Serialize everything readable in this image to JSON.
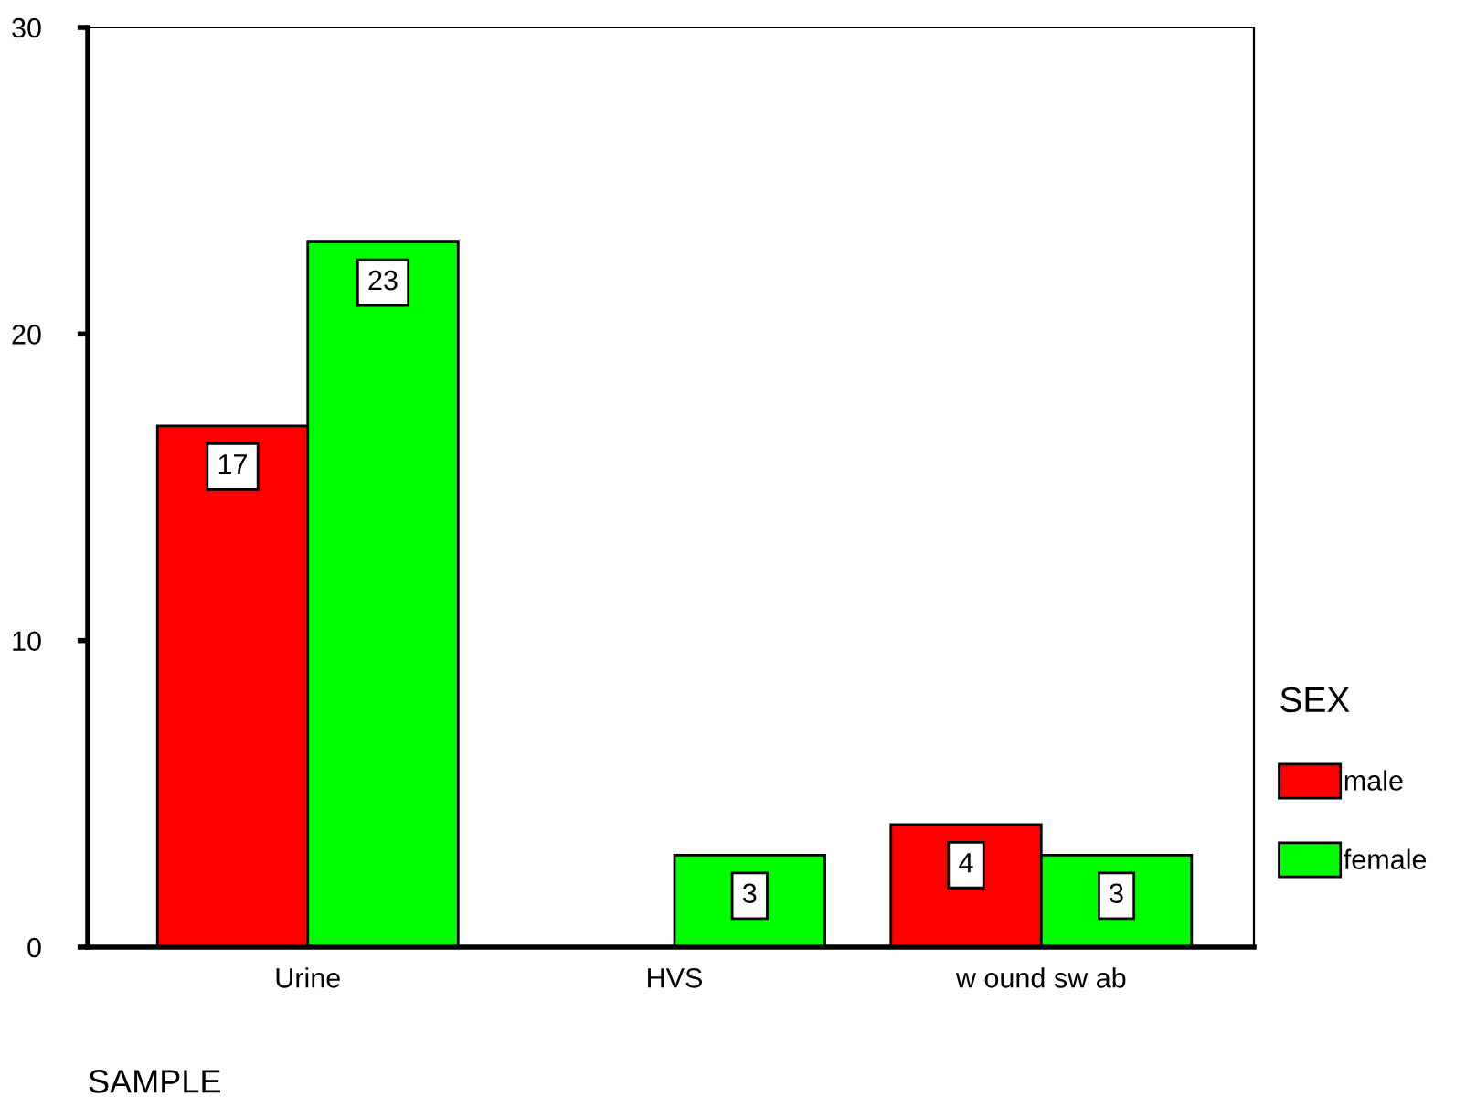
{
  "chart_data": {
    "type": "bar",
    "xlabel": "SAMPLE",
    "legend_title": "SEX",
    "categories": [
      "Urine",
      "HVS",
      "w ound sw ab"
    ],
    "series": [
      {
        "name": "male",
        "color": "#ff0000",
        "values": [
          17,
          null,
          4
        ]
      },
      {
        "name": "female",
        "color": "#00ff00",
        "values": [
          23,
          3,
          3
        ]
      }
    ],
    "ylim": [
      0,
      30
    ],
    "yticks": [
      0,
      10,
      20,
      30
    ],
    "grid": false,
    "legend": "right",
    "data_labels": true
  }
}
